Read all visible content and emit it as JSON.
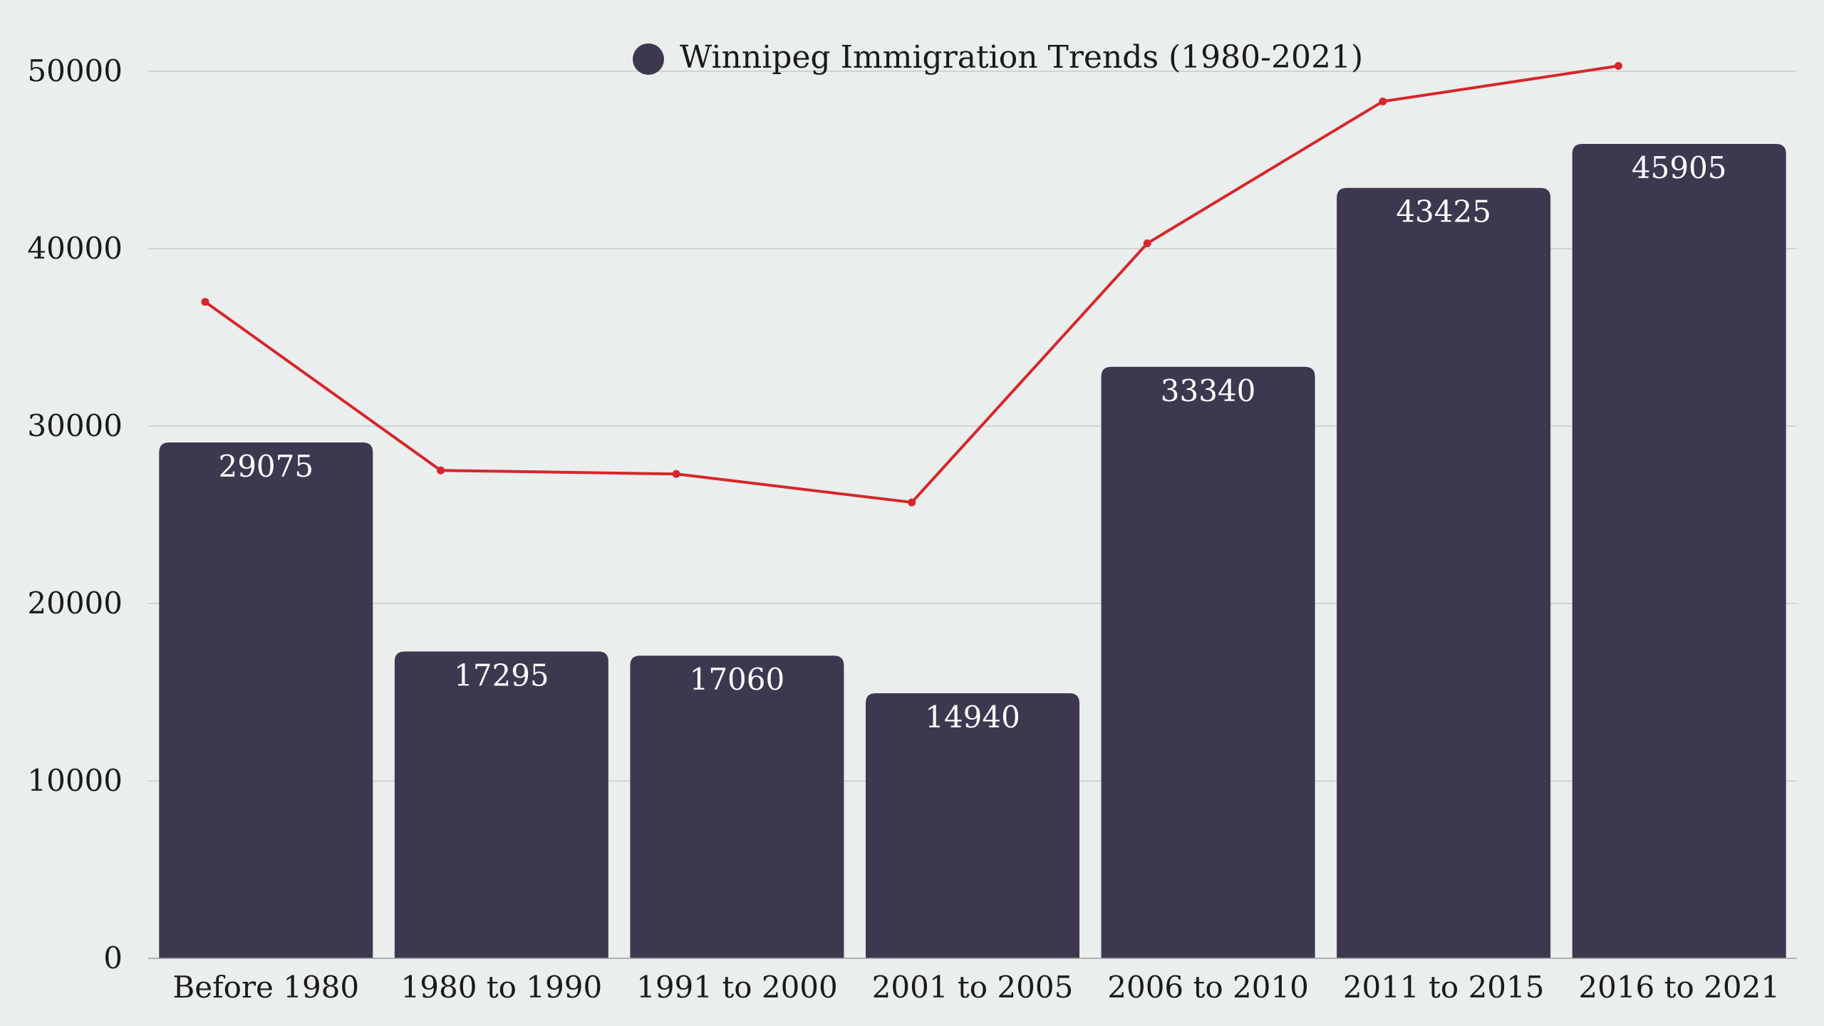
{
  "chart_data": {
    "type": "bar",
    "categories": [
      "Before 1980",
      "1980 to 1990",
      "1991 to 2000",
      "2001 to 2005",
      "2006 to 2010",
      "2011 to 2015",
      "2016 to 2021"
    ],
    "series": [
      {
        "name": "Winnipeg Immigration Trends (1980-2021)",
        "type": "bar",
        "values": [
          29075,
          17295,
          17060,
          14940,
          33340,
          43425,
          45905
        ],
        "color": "#3d3850"
      },
      {
        "type": "line",
        "values": [
          37000,
          27500,
          27300,
          25700,
          40300,
          48300,
          50300
        ],
        "color": "#d7262b"
      }
    ],
    "data_labels": [
      "29075",
      "17295",
      "17060",
      "14940",
      "33340",
      "43425",
      "45905"
    ],
    "y_ticks": [
      "0",
      "10000",
      "20000",
      "30000",
      "40000",
      "50000"
    ],
    "ylim": [
      0,
      50000
    ],
    "grid": true,
    "legend_position": "top-center",
    "title": "",
    "xlabel": "",
    "ylabel": ""
  },
  "colors": {
    "background": "#eaeeed",
    "bar": "#3d3850",
    "line": "#d7262b",
    "grid": "#c8cccb"
  }
}
